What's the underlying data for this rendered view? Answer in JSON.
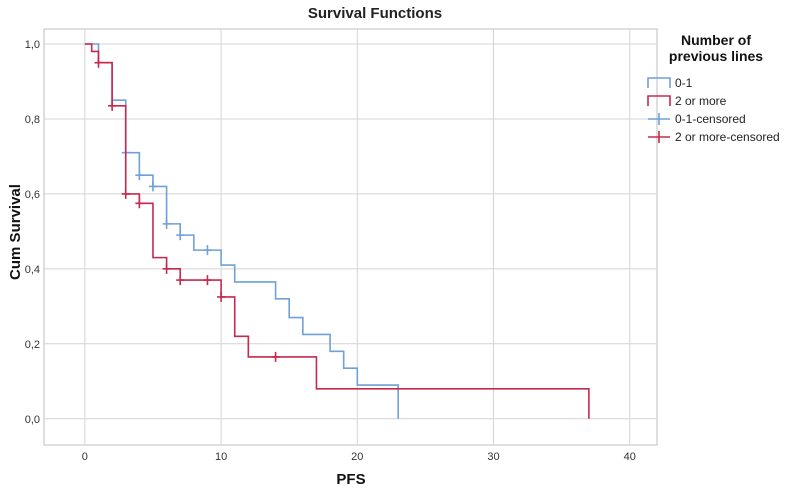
{
  "chart_data": {
    "type": "line",
    "step": true,
    "title": "Survival Functions",
    "xlabel": "PFS",
    "ylabel": "Cum Survival",
    "xlim": [
      -3,
      42
    ],
    "ylim": [
      -0.07,
      1.04
    ],
    "xticks": [
      0,
      10,
      20,
      30,
      40
    ],
    "yticks": [
      0.0,
      0.2,
      0.4,
      0.6,
      0.8,
      1.0
    ],
    "xtick_labels": [
      "0",
      "10",
      "20",
      "30",
      "40"
    ],
    "ytick_labels": [
      "0,0",
      "0,2",
      "0,4",
      "0,6",
      "0,8",
      "1,0"
    ],
    "grid": true,
    "legend": {
      "title": [
        "Number of",
        "previous lines"
      ],
      "placement": "right",
      "entries": [
        "0-1",
        "2 or more",
        "0-1-censored",
        "2 or more-censored"
      ]
    },
    "series": [
      {
        "name": "0-1",
        "color": "#6fa0d8",
        "steps": [
          [
            0,
            1.0
          ],
          [
            1,
            0.95
          ],
          [
            2,
            0.85
          ],
          [
            3,
            0.71
          ],
          [
            4,
            0.65
          ],
          [
            5,
            0.62
          ],
          [
            6,
            0.52
          ],
          [
            7,
            0.49
          ],
          [
            8,
            0.45
          ],
          [
            10,
            0.41
          ],
          [
            11,
            0.365
          ],
          [
            14,
            0.32
          ],
          [
            15,
            0.27
          ],
          [
            16,
            0.225
          ],
          [
            18,
            0.18
          ],
          [
            19,
            0.135
          ],
          [
            20,
            0.09
          ],
          [
            23,
            0.0
          ]
        ],
        "censored": [
          [
            3,
            0.71
          ],
          [
            4,
            0.65
          ],
          [
            5,
            0.62
          ],
          [
            6,
            0.52
          ],
          [
            7,
            0.49
          ],
          [
            9,
            0.45
          ]
        ],
        "end": 23
      },
      {
        "name": "2 or more",
        "color": "#c8284e",
        "steps": [
          [
            0,
            1.0
          ],
          [
            0.5,
            0.98
          ],
          [
            1,
            0.95
          ],
          [
            2,
            0.835
          ],
          [
            3,
            0.6
          ],
          [
            4,
            0.575
          ],
          [
            5,
            0.43
          ],
          [
            6,
            0.4
          ],
          [
            7,
            0.37
          ],
          [
            10,
            0.325
          ],
          [
            11,
            0.22
          ],
          [
            12,
            0.165
          ],
          [
            17,
            0.08
          ],
          [
            37,
            0.0
          ]
        ],
        "censored": [
          [
            1,
            0.95
          ],
          [
            2,
            0.835
          ],
          [
            3,
            0.6
          ],
          [
            4,
            0.575
          ],
          [
            6,
            0.4
          ],
          [
            7,
            0.37
          ],
          [
            9,
            0.37
          ],
          [
            10,
            0.325
          ],
          [
            14,
            0.165
          ]
        ],
        "end": 37
      }
    ]
  }
}
